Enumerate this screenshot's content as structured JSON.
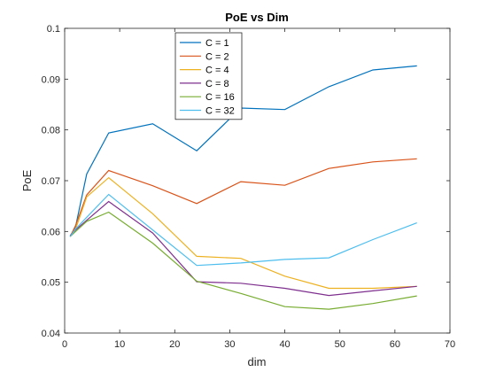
{
  "chart_data": {
    "type": "line",
    "title": "PoE vs Dim",
    "xlabel": "dim",
    "ylabel": "PoE",
    "xlim": [
      0,
      70
    ],
    "ylim": [
      0.04,
      0.1
    ],
    "xticks": [
      0,
      10,
      20,
      30,
      40,
      50,
      60,
      70
    ],
    "yticks": [
      0.04,
      0.05,
      0.06,
      0.07,
      0.08,
      0.09,
      0.1
    ],
    "xtick_labels": [
      "0",
      "10",
      "20",
      "30",
      "40",
      "50",
      "60",
      "70"
    ],
    "ytick_labels": [
      "0.04",
      "0.05",
      "0.06",
      "0.07",
      "0.08",
      "0.09",
      "0.1"
    ],
    "grid": false,
    "legend_position": "top-center",
    "x": [
      1,
      2,
      4,
      8,
      16,
      24,
      32,
      40,
      48,
      56,
      64
    ],
    "series": [
      {
        "name": "C = 1",
        "color": "#0072BD",
        "values": [
          0.059,
          0.061,
          0.0713,
          0.0794,
          0.0812,
          0.0759,
          0.0843,
          0.084,
          0.0885,
          0.0918,
          0.0926
        ]
      },
      {
        "name": "C = 2",
        "color": "#D95319",
        "values": [
          0.059,
          0.0612,
          0.0672,
          0.072,
          0.069,
          0.0655,
          0.0698,
          0.0691,
          0.0724,
          0.0737,
          0.0743
        ]
      },
      {
        "name": "C = 4",
        "color": "#EDB120",
        "values": [
          0.059,
          0.0605,
          0.0668,
          0.0706,
          0.0635,
          0.0551,
          0.0547,
          0.0512,
          0.0488,
          0.0488,
          0.0492
        ]
      },
      {
        "name": "C = 8",
        "color": "#7E2F8E",
        "values": [
          0.0592,
          0.0603,
          0.0622,
          0.0659,
          0.0597,
          0.0501,
          0.0498,
          0.0488,
          0.0474,
          0.0483,
          0.0492
        ]
      },
      {
        "name": "C = 16",
        "color": "#77AC30",
        "values": [
          0.059,
          0.06,
          0.062,
          0.0638,
          0.0577,
          0.0502,
          0.0478,
          0.0452,
          0.0447,
          0.0458,
          0.0473
        ]
      },
      {
        "name": "C = 32",
        "color": "#4DBEEE",
        "values": [
          0.059,
          0.0605,
          0.0628,
          0.0673,
          0.0603,
          0.0533,
          0.0538,
          0.0545,
          0.0548,
          0.0584,
          0.0617
        ]
      }
    ]
  }
}
